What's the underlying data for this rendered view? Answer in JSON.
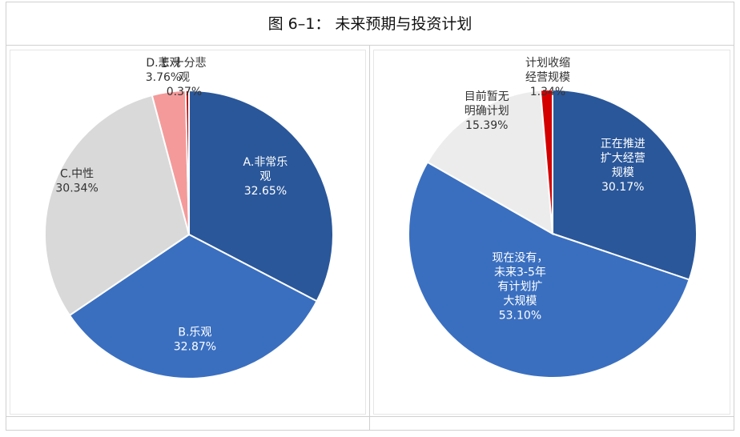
{
  "figure_title": "图 6–1： 未来预期与投资计划",
  "chart_data": [
    {
      "type": "pie",
      "slices": [
        {
          "label_lines": [
            "A.非常乐",
            "观"
          ],
          "pct_text": "32.65%",
          "value": 32.65,
          "color": "#2a579a",
          "label_color": "#ffffff"
        },
        {
          "label_lines": [
            "B.乐观"
          ],
          "pct_text": "32.87%",
          "value": 32.87,
          "color": "#3a6fc0",
          "label_color": "#ffffff"
        },
        {
          "label_lines": [
            "C.中性"
          ],
          "pct_text": "30.34%",
          "value": 30.34,
          "color": "#d9d9d9",
          "label_color": "#333333"
        },
        {
          "label_lines": [
            "D.悲观"
          ],
          "pct_text": "3.76%",
          "value": 3.76,
          "color": "#f49a9a",
          "label_color": "#333333"
        },
        {
          "label_lines": [
            "E.十分悲",
            "观"
          ],
          "pct_text": "0.37%",
          "value": 0.37,
          "color": "#c00000",
          "label_color": "#333333"
        }
      ]
    },
    {
      "type": "pie",
      "slices": [
        {
          "label_lines": [
            "正在推进",
            "扩大经营",
            "规模"
          ],
          "pct_text": "30.17%",
          "value": 30.17,
          "color": "#2a579a",
          "label_color": "#ffffff"
        },
        {
          "label_lines": [
            "现在没有，",
            "未来3-5年",
            "有计划扩",
            "大规模"
          ],
          "pct_text": "53.10%",
          "value": 53.1,
          "color": "#3a6fc0",
          "label_color": "#ffffff"
        },
        {
          "label_lines": [
            "目前暂无",
            "明确计划"
          ],
          "pct_text": "15.39%",
          "value": 15.39,
          "color": "#ececec",
          "label_color": "#333333"
        },
        {
          "label_lines": [
            "计划收缩",
            "经营规模"
          ],
          "pct_text": "1.34%",
          "value": 1.34,
          "color": "#d40000",
          "label_color": "#333333"
        }
      ]
    }
  ]
}
